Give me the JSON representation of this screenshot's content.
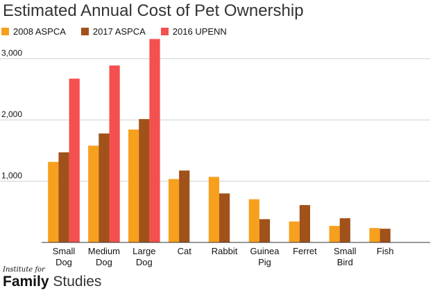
{
  "chart_data": {
    "type": "bar",
    "title": "Estimated Annual Cost of Pet Ownership",
    "xlabel": "",
    "ylabel": "",
    "categories": [
      [
        "Small",
        "Dog"
      ],
      [
        "Medium",
        "Dog"
      ],
      [
        "Large",
        "Dog"
      ],
      [
        "Cat"
      ],
      [
        "Rabbit"
      ],
      [
        "Guinea",
        "Pig"
      ],
      [
        "Ferret"
      ],
      [
        "Small",
        "Bird"
      ],
      [
        "Fish"
      ]
    ],
    "series": [
      {
        "name": "2008 ASPCA",
        "color": "#F7A01E",
        "values": [
          1315,
          1580,
          1843,
          1035,
          1070,
          705,
          342,
          270,
          235
        ]
      },
      {
        "name": "2017 ASPCA",
        "color": "#A0521A",
        "values": [
          1471,
          1779,
          2014,
          1174,
          800,
          380,
          610,
          395,
          224
        ]
      },
      {
        "name": "2016 UPENN",
        "color": "#F4504F",
        "values": [
          2674,
          2889,
          3321,
          null,
          null,
          null,
          null,
          null,
          null
        ]
      }
    ],
    "ylim": [
      0,
      3500
    ],
    "yticks": [
      1000,
      2000,
      3000
    ],
    "ytick_labels": [
      "1,000",
      "2,000",
      "3,000"
    ],
    "grid": true,
    "legend_position": "top-left"
  },
  "brand": {
    "top": "Institute for",
    "bold": "Family",
    "light": " Studies"
  }
}
